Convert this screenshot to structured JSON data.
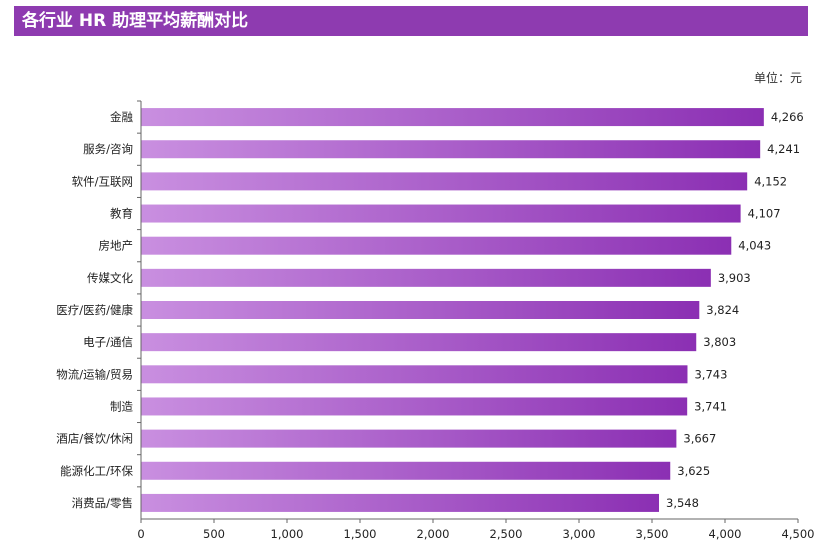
{
  "header": {
    "title": "各行业 HR 助理平均薪酬对比",
    "unit": "单位：元"
  },
  "colors": {
    "title_bg": "#8e3bb0",
    "bar_left": "#c98fe0",
    "bar_right": "#8b2fb3",
    "axis": "#666666"
  },
  "chart_data": {
    "type": "bar",
    "orientation": "horizontal",
    "title": "各行业 HR 助理平均薪酬对比",
    "unit": "单位：元",
    "categories": [
      "金融",
      "服务/咨询",
      "软件/互联网",
      "教育",
      "房地产",
      "传媒文化",
      "医疗/医药/健康",
      "电子/通信",
      "物流/运输/贸易",
      "制造",
      "酒店/餐饮/休闲",
      "能源化工/环保",
      "消费品/零售"
    ],
    "values": [
      4266,
      4241,
      4152,
      4107,
      4043,
      3903,
      3824,
      3803,
      3743,
      3741,
      3667,
      3625,
      3548
    ],
    "value_labels": [
      "4,266",
      "4,241",
      "4,152",
      "4,107",
      "4,043",
      "3,903",
      "3,824",
      "3,803",
      "3,743",
      "3,741",
      "3,667",
      "3,625",
      "3,548"
    ],
    "xlim": [
      0,
      4500
    ],
    "xticks": [
      0,
      500,
      1000,
      1500,
      2000,
      2500,
      3000,
      3500,
      4000,
      4500
    ],
    "xtick_labels": [
      "0",
      "500",
      "1,000",
      "1,500",
      "2,000",
      "2,500",
      "3,000",
      "3,500",
      "4,000",
      "4,500"
    ],
    "grid": false,
    "legend": "none"
  }
}
